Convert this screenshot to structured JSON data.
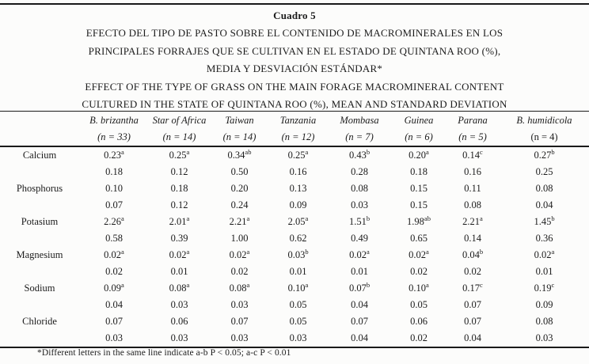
{
  "title": {
    "label": "Cuadro 5",
    "es_lines": [
      "EFECTO DEL TIPO DE PASTO SOBRE EL CONTENIDO DE MACROMINERALES EN LOS",
      "PRINCIPALES FORRAJES QUE SE CULTIVAN EN EL ESTADO DE QUINTANA ROO (%),",
      "MEDIA Y DESVIACIÓN ESTÁNDAR*"
    ],
    "en_lines": [
      "EFFECT OF THE TYPE OF GRASS ON THE MAIN FORAGE MACROMINERAL CONTENT",
      "CULTURED IN THE STATE OF QUINTANA ROO (%), MEAN AND STANDARD DEVIATION"
    ]
  },
  "table": {
    "columns": [
      {
        "name": "B. brizantha",
        "n": "(n = 33)",
        "n_italic": true
      },
      {
        "name": "Star of Africa",
        "n": "(n = 14)",
        "n_italic": true
      },
      {
        "name": "Taiwan",
        "n": "(n = 14)",
        "n_italic": true
      },
      {
        "name": "Tanzania",
        "n": "(n = 12)",
        "n_italic": true
      },
      {
        "name": "Mombasa",
        "n": "(n = 7)",
        "n_italic": true
      },
      {
        "name": "Guinea",
        "n": "(n = 6)",
        "n_italic": true
      },
      {
        "name": "Parana",
        "n": "(n = 5)",
        "n_italic": true
      },
      {
        "name": "B. humidicola",
        "n": "(n = 4)",
        "n_italic": false
      }
    ],
    "rows": [
      {
        "mineral": "Calcium",
        "mean": [
          {
            "v": "0.23",
            "sup": "a"
          },
          {
            "v": "0.25",
            "sup": "a"
          },
          {
            "v": "0.34",
            "sup": "ab"
          },
          {
            "v": "0.25",
            "sup": "a"
          },
          {
            "v": "0.43",
            "sup": "b"
          },
          {
            "v": "0.20",
            "sup": "a"
          },
          {
            "v": "0.14",
            "sup": "c"
          },
          {
            "v": "0.27",
            "sup": "b"
          }
        ],
        "sd": [
          "0.18",
          "0.12",
          "0.50",
          "0.16",
          "0.28",
          "0.18",
          "0.16",
          "0.25"
        ]
      },
      {
        "mineral": "Phosphorus",
        "mean": [
          {
            "v": "0.10"
          },
          {
            "v": "0.18"
          },
          {
            "v": "0.20"
          },
          {
            "v": "0.13"
          },
          {
            "v": "0.08"
          },
          {
            "v": "0.15"
          },
          {
            "v": "0.11"
          },
          {
            "v": "0.08"
          }
        ],
        "sd": [
          "0.07",
          "0.12",
          "0.24",
          "0.09",
          "0.03",
          "0.15",
          "0.08",
          "0.04"
        ]
      },
      {
        "mineral": "Potasium",
        "mean": [
          {
            "v": "2.26",
            "sup": "a"
          },
          {
            "v": "2.01",
            "sup": "a"
          },
          {
            "v": "2.21",
            "sup": "a"
          },
          {
            "v": "2.05",
            "sup": "a"
          },
          {
            "v": "1.51",
            "sup": "b"
          },
          {
            "v": "1.98",
            "sup": "ab"
          },
          {
            "v": "2.21",
            "sup": "a"
          },
          {
            "v": "1.45",
            "sup": "b"
          }
        ],
        "sd": [
          "0.58",
          "0.39",
          "1.00",
          "0.62",
          "0.49",
          "0.65",
          "0.14",
          "0.36"
        ]
      },
      {
        "mineral": "Magnesium",
        "mean": [
          {
            "v": "0.02",
            "sup": "a"
          },
          {
            "v": "0.02",
            "sup": "a"
          },
          {
            "v": "0.02",
            "sup": "a"
          },
          {
            "v": "0.03",
            "sup": "b"
          },
          {
            "v": "0.02",
            "sup": "a"
          },
          {
            "v": "0.02",
            "sup": "a"
          },
          {
            "v": "0.04",
            "sup": "b"
          },
          {
            "v": "0.02",
            "sup": "a"
          }
        ],
        "sd": [
          "0.02",
          "0.01",
          "0.02",
          "0.01",
          "0.01",
          "0.02",
          "0.02",
          "0.01"
        ]
      },
      {
        "mineral": "Sodium",
        "mean": [
          {
            "v": "0.09",
            "sup": "a"
          },
          {
            "v": "0.08",
            "sup": "a"
          },
          {
            "v": "0.08",
            "sup": "a"
          },
          {
            "v": "0.10",
            "sup": "a"
          },
          {
            "v": "0.07",
            "sup": "b"
          },
          {
            "v": "0.10",
            "sup": "a"
          },
          {
            "v": "0.17",
            "sup": "c"
          },
          {
            "v": "0.19",
            "sup": "c"
          }
        ],
        "sd": [
          "0.04",
          "0.03",
          "0.03",
          "0.05",
          "0.04",
          "0.05",
          "0.07",
          "0.09"
        ]
      },
      {
        "mineral": "Chloride",
        "mean": [
          {
            "v": "0.07"
          },
          {
            "v": "0.06"
          },
          {
            "v": "0.07"
          },
          {
            "v": "0.05"
          },
          {
            "v": "0.07"
          },
          {
            "v": "0.06"
          },
          {
            "v": "0.07"
          },
          {
            "v": "0.08"
          }
        ],
        "sd": [
          "0.03",
          "0.03",
          "0.03",
          "0.03",
          "0.04",
          "0.02",
          "0.04",
          "0.03"
        ]
      }
    ]
  },
  "footnote": "*Different letters in the same line indicate a-b P < 0.05; a-c P < 0.01"
}
